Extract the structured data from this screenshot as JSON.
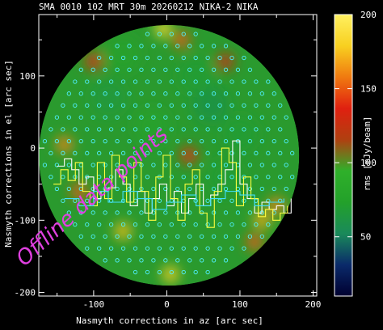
{
  "header": {
    "text": "SMA 0010 102 MRT 30m  20260212 NIKA-2 NIKA"
  },
  "annotation": {
    "handwritten": "Offline data points"
  },
  "chart_data": {
    "type": "heatmap",
    "title": "SMA 0010 102 MRT 30m  20260212 NIKA-2 NIKA",
    "xlabel": "Nasmyth corrections in az [arc sec]",
    "ylabel": "Nasmyth corrections in el [arc sec]",
    "xlim": [
      -175,
      205
    ],
    "ylim": [
      -205,
      185
    ],
    "x_ticks": [
      -100,
      0,
      100,
      200
    ],
    "y_ticks": [
      -200,
      -100,
      0,
      100
    ],
    "x_tick_labels": [
      "-100",
      "0",
      "100",
      "200"
    ],
    "y_tick_labels": [
      "-200",
      "-100",
      "0",
      "100"
    ],
    "field_of_view": {
      "center": [
        3,
        -10
      ],
      "radius": 178
    },
    "colorbar": {
      "label": "rms [mJy/beam]",
      "range": [
        10,
        200
      ],
      "ticks": [
        50,
        100,
        150,
        200
      ],
      "tick_labels": [
        "50",
        "100",
        "150",
        "200"
      ],
      "colors": [
        "#000030",
        "#0a2a6a",
        "#1a8a5a",
        "#23a12a",
        "#2fb02a",
        "#b04010",
        "#e02010",
        "#f07a10",
        "#f8d020",
        "#fff060"
      ]
    },
    "background_color": "#2a9a2e",
    "hotspots": [
      {
        "x": -5,
        "y": 165,
        "value": 185
      },
      {
        "x": 5,
        "y": -175,
        "value": 180
      },
      {
        "x": -60,
        "y": -115,
        "value": 175
      },
      {
        "x": 130,
        "y": -100,
        "value": 170
      },
      {
        "x": 150,
        "y": -80,
        "value": 160
      },
      {
        "x": -140,
        "y": 5,
        "value": 160
      },
      {
        "x": 30,
        "y": -10,
        "value": 140
      },
      {
        "x": 20,
        "y": 150,
        "value": 150
      },
      {
        "x": 80,
        "y": 120,
        "value": 130
      },
      {
        "x": -100,
        "y": 120,
        "value": 140
      },
      {
        "x": -120,
        "y": -60,
        "value": 150
      },
      {
        "x": 120,
        "y": -130,
        "value": 150
      }
    ],
    "lowspots": [
      {
        "x": 60,
        "y": 60,
        "value": 60
      },
      {
        "x": -80,
        "y": 70,
        "value": 65
      },
      {
        "x": 40,
        "y": 100,
        "value": 70
      },
      {
        "x": -20,
        "y": 30,
        "value": 75
      },
      {
        "x": 100,
        "y": 20,
        "value": 70
      },
      {
        "x": -60,
        "y": 130,
        "value": 75
      },
      {
        "x": 80,
        "y": -40,
        "value": 70
      }
    ],
    "detector_grid": {
      "spacing": 16.5,
      "marker": "circle",
      "color": "#4ff0ff"
    },
    "series": [
      {
        "color": "#ffffff",
        "x": [
          -150,
          -140,
          -130,
          -120,
          -110,
          -100,
          -90,
          -80,
          -70,
          -60,
          -50,
          -40,
          -30,
          -20,
          -10,
          0,
          10,
          20,
          30,
          40,
          50,
          60,
          70,
          80,
          90,
          100,
          110,
          120,
          130,
          140,
          150,
          160,
          170
        ],
        "y": [
          -25,
          -15,
          -30,
          -50,
          -40,
          -70,
          -60,
          -55,
          -30,
          -50,
          -80,
          -60,
          -90,
          -70,
          -50,
          -80,
          -60,
          -90,
          -70,
          -50,
          -80,
          -65,
          -50,
          -30,
          10,
          -50,
          -70,
          -90,
          -75,
          -85,
          -80,
          -90,
          -70
        ]
      },
      {
        "color": "#ffff40",
        "x": [
          -155,
          -145,
          -135,
          -125,
          -115,
          -105,
          -95,
          -85,
          -75,
          -65,
          -55,
          -45,
          -35,
          -25,
          -15,
          -5,
          5,
          15,
          25,
          35,
          45,
          55,
          65,
          75,
          85,
          95,
          105,
          115,
          125,
          135,
          145,
          155,
          165
        ],
        "y": [
          -50,
          -30,
          -45,
          -20,
          -60,
          -80,
          -20,
          -70,
          -10,
          -40,
          -75,
          -20,
          -60,
          -100,
          -40,
          -10,
          -70,
          -100,
          -50,
          -30,
          -90,
          -110,
          -60,
          0,
          -20,
          -80,
          -40,
          -70,
          -95,
          -85,
          -100,
          -90,
          -80
        ]
      },
      {
        "color": "#40e0ff",
        "x": [
          -140,
          -120,
          -100,
          -80,
          -60,
          -40,
          -20,
          0,
          20,
          40,
          60,
          80,
          100,
          120,
          140,
          160
        ],
        "y": [
          -70,
          -80,
          -60,
          -75,
          -60,
          -70,
          -85,
          -75,
          -65,
          -80,
          -70,
          -60,
          -65,
          -80,
          -75,
          -70
        ]
      }
    ]
  }
}
